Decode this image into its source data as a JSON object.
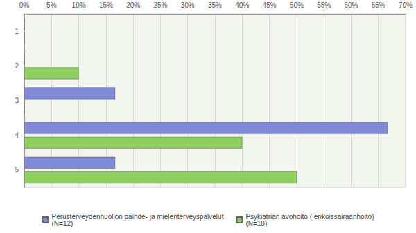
{
  "chart_data": {
    "type": "bar",
    "orientation": "horizontal",
    "categories": [
      "1",
      "2",
      "3",
      "4",
      "5"
    ],
    "series": [
      {
        "name": "Perusterveydenhuollon päihde- ja mielenterveyspalvelut\n(N=12)",
        "color": "#8088d8",
        "values": [
          0,
          0,
          16.7,
          66.7,
          16.7
        ]
      },
      {
        "name": "Psykiatrian avohoito ( erikoissairaanhoito)\n(N=10)",
        "color": "#8ccf5c",
        "values": [
          0,
          10,
          0,
          40,
          50
        ]
      }
    ],
    "xlim": [
      0,
      70
    ],
    "xticks": [
      {
        "value": 0,
        "label": "0%"
      },
      {
        "value": 5,
        "label": "5%"
      },
      {
        "value": 10,
        "label": "10%"
      },
      {
        "value": 15,
        "label": "15%"
      },
      {
        "value": 20,
        "label": "20%"
      },
      {
        "value": 25,
        "label": "25%"
      },
      {
        "value": 30,
        "label": "30%"
      },
      {
        "value": 35,
        "label": "35%"
      },
      {
        "value": 40,
        "label": "40%"
      },
      {
        "value": 45,
        "label": "45%"
      },
      {
        "value": 50,
        "label": "50%"
      },
      {
        "value": 55,
        "label": "55%"
      },
      {
        "value": 60,
        "label": "60%"
      },
      {
        "value": 65,
        "label": "65%"
      },
      {
        "value": 70,
        "label": "70%"
      }
    ],
    "grid": true,
    "legend": "bottom"
  }
}
